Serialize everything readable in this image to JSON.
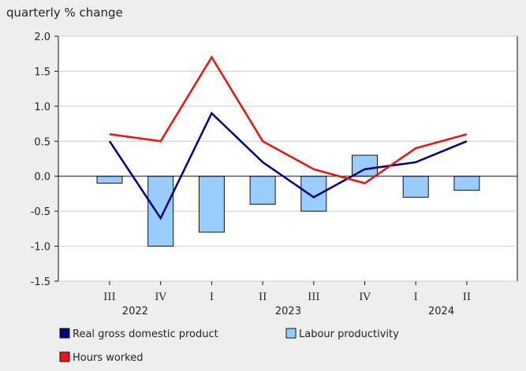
{
  "chart_data": {
    "type": "bar",
    "title": "",
    "ylabel": "quarterly % change",
    "xlabel": "",
    "ylim": [
      -1.5,
      2.0
    ],
    "yticks": [
      2.0,
      1.5,
      1.0,
      0.5,
      0.0,
      -0.5,
      -1.0,
      -1.5
    ],
    "ytick_labels": [
      "2.0",
      "1.5",
      "1.0",
      "0.5",
      "0.0",
      "-0.5",
      "-1.0",
      "-1.5"
    ],
    "categories": [
      "III",
      "IV",
      "I",
      "II",
      "III",
      "IV",
      "I",
      "II"
    ],
    "years": [
      {
        "label": "2022",
        "start": 0,
        "end": 1
      },
      {
        "label": "2023",
        "start": 2,
        "end": 5
      },
      {
        "label": "2024",
        "start": 6,
        "end": 7
      }
    ],
    "series": [
      {
        "name": "Real gross domestic product",
        "kind": "line",
        "color": "#000080",
        "values": [
          0.5,
          -0.6,
          0.9,
          0.2,
          -0.3,
          0.1,
          0.2,
          0.5
        ]
      },
      {
        "name": "Labour productivity",
        "kind": "bar",
        "color": "#99ccff",
        "values": [
          -0.1,
          -1.0,
          -0.8,
          -0.4,
          -0.5,
          0.3,
          -0.3,
          -0.2
        ]
      },
      {
        "name": "Hours worked",
        "kind": "line",
        "color": "#ee1111",
        "values": [
          0.6,
          0.5,
          1.7,
          0.5,
          0.1,
          -0.1,
          0.4,
          0.6
        ]
      }
    ],
    "grid": true,
    "legend_position": "bottom"
  }
}
